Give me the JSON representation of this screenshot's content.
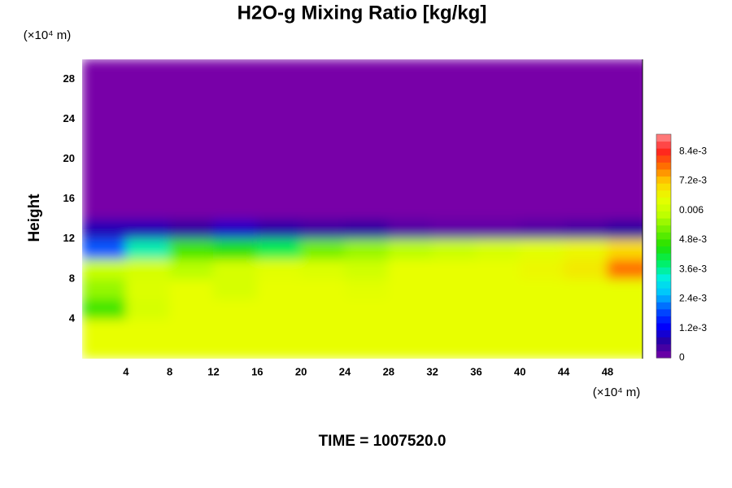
{
  "chart_data": {
    "type": "heatmap",
    "title": "H2O-g Mixing Ratio [kg/kg]",
    "y_label": "Height",
    "x_unit_label": "(×10⁴ m)",
    "y_unit_label": "(×10⁴ m)",
    "time_label": "TIME = 1007520.0",
    "x": [
      2,
      6,
      10,
      14,
      18,
      22,
      26,
      30,
      34,
      38,
      42,
      46,
      50
    ],
    "y": [
      1,
      3,
      5,
      7,
      9,
      11,
      13,
      15,
      17,
      19,
      21,
      23,
      25,
      27,
      29
    ],
    "z": [
      [
        0.0065,
        0.0065,
        0.0065,
        0.0065,
        0.0065,
        0.0065,
        0.0065,
        0.0065,
        0.0065,
        0.0065,
        0.0065,
        0.0065,
        0.0065
      ],
      [
        0.0065,
        0.0065,
        0.0065,
        0.0065,
        0.0065,
        0.0065,
        0.0065,
        0.0065,
        0.0065,
        0.0065,
        0.0065,
        0.0065,
        0.0065
      ],
      [
        0.0048,
        0.0062,
        0.0065,
        0.0065,
        0.0065,
        0.0065,
        0.0065,
        0.0065,
        0.0065,
        0.0065,
        0.0065,
        0.0065,
        0.0065
      ],
      [
        0.0055,
        0.0063,
        0.0065,
        0.0062,
        0.0065,
        0.0065,
        0.0064,
        0.0065,
        0.0065,
        0.0065,
        0.0065,
        0.0065,
        0.0065
      ],
      [
        0.006,
        0.0062,
        0.0058,
        0.0062,
        0.0064,
        0.0063,
        0.0061,
        0.0065,
        0.0065,
        0.0065,
        0.0066,
        0.0068,
        0.0078
      ],
      [
        0.002,
        0.0035,
        0.0048,
        0.0045,
        0.004,
        0.0052,
        0.0055,
        0.0058,
        0.006,
        0.0062,
        0.0064,
        0.0066,
        0.007
      ],
      [
        0.0008,
        0.0008,
        0.0006,
        0.0009,
        0.0007,
        0.0005,
        0.0006,
        0.0003,
        0.0002,
        0.0002,
        0.0003,
        0.0004,
        0.0006
      ],
      [
        0,
        0,
        0,
        0,
        0,
        0,
        0,
        0,
        0,
        0,
        0,
        0,
        0
      ],
      [
        0,
        0,
        0,
        0,
        0,
        0,
        0,
        0,
        0,
        0,
        0,
        0,
        0
      ],
      [
        0,
        0,
        0,
        0,
        0,
        0,
        0,
        0,
        0,
        0,
        0,
        0,
        0
      ],
      [
        0,
        0,
        0,
        0,
        0,
        0,
        0,
        0,
        0,
        0,
        0,
        0,
        0
      ],
      [
        0,
        0,
        0,
        0,
        0,
        0,
        0,
        0,
        0,
        0,
        0,
        0,
        0
      ],
      [
        0,
        0,
        0,
        0,
        0,
        0,
        0,
        0,
        0,
        0,
        0,
        0,
        0
      ],
      [
        0,
        0,
        0,
        0,
        0,
        0,
        0,
        0,
        0,
        0,
        0,
        0,
        0
      ],
      [
        0,
        0,
        0,
        0,
        0,
        0,
        0,
        0,
        0,
        0,
        0,
        0,
        0
      ]
    ],
    "xlim": [
      0,
      51.2
    ],
    "ylim": [
      0,
      30
    ],
    "xticks": [
      4,
      8,
      12,
      16,
      20,
      24,
      28,
      32,
      36,
      40,
      44,
      48
    ],
    "yticks": [
      4,
      8,
      12,
      16,
      20,
      24,
      28
    ],
    "zlim": [
      0,
      0.0091
    ],
    "zticks": [
      0,
      {
        "value": 0.0012,
        "label": "1.2e-3"
      },
      {
        "value": 0.0024,
        "label": "2.4e-3"
      },
      {
        "value": 0.0036,
        "label": "3.6e-3"
      },
      {
        "value": 0.0048,
        "label": "4.8e-3"
      },
      0.006,
      {
        "value": 0.0072,
        "label": "7.2e-3"
      },
      {
        "value": 0.0084,
        "label": "8.4e-3"
      }
    ],
    "colors": [
      "#7800a8",
      "#2a00a0",
      "#0000ff",
      "#0050ff",
      "#00c0ff",
      "#00f0e0",
      "#00f060",
      "#20e000",
      "#70f000",
      "#c0ff00",
      "#e8ff00",
      "#ffd000",
      "#ff7000",
      "#ff2020",
      "#ff9090"
    ]
  }
}
